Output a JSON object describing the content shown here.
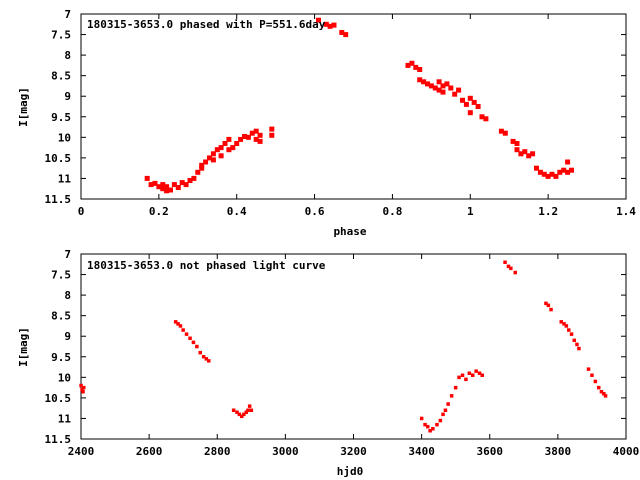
{
  "chart_data": [
    {
      "type": "scatter",
      "title": "180315-3653.0 phased with P=551.6day",
      "xlabel": "phase",
      "ylabel": "I[mag]",
      "xlim": [
        0,
        1.4
      ],
      "ylim": [
        11.5,
        7
      ],
      "y_inverted": true,
      "grid": false,
      "marker_color": "#ff0000",
      "x_ticks": [
        "0",
        "0.2",
        "0.4",
        "0.6",
        "0.8",
        "1",
        "1.2",
        "1.4"
      ],
      "y_ticks": [
        "7",
        "7.5",
        "8",
        "8.5",
        "9",
        "9.5",
        "10",
        "10.5",
        "11",
        "11.5"
      ],
      "series": [
        {
          "points": [
            [
              0.17,
              11.0
            ],
            [
              0.18,
              11.15
            ],
            [
              0.19,
              11.12
            ],
            [
              0.2,
              11.2
            ],
            [
              0.21,
              11.25
            ],
            [
              0.21,
              11.15
            ],
            [
              0.22,
              11.3
            ],
            [
              0.22,
              11.2
            ],
            [
              0.23,
              11.28
            ],
            [
              0.24,
              11.15
            ],
            [
              0.25,
              11.22
            ],
            [
              0.26,
              11.1
            ],
            [
              0.27,
              11.15
            ],
            [
              0.28,
              11.05
            ],
            [
              0.29,
              11.0
            ],
            [
              0.3,
              10.85
            ],
            [
              0.31,
              10.75
            ],
            [
              0.31,
              10.68
            ],
            [
              0.32,
              10.6
            ],
            [
              0.33,
              10.5
            ],
            [
              0.34,
              10.55
            ],
            [
              0.34,
              10.4
            ],
            [
              0.35,
              10.3
            ],
            [
              0.36,
              10.45
            ],
            [
              0.36,
              10.25
            ],
            [
              0.37,
              10.15
            ],
            [
              0.38,
              10.3
            ],
            [
              0.38,
              10.05
            ],
            [
              0.39,
              10.25
            ],
            [
              0.4,
              10.15
            ],
            [
              0.41,
              10.05
            ],
            [
              0.42,
              9.98
            ],
            [
              0.43,
              10.0
            ],
            [
              0.44,
              9.9
            ],
            [
              0.45,
              10.05
            ],
            [
              0.45,
              9.85
            ],
            [
              0.46,
              10.1
            ],
            [
              0.46,
              9.95
            ],
            [
              0.49,
              9.95
            ],
            [
              0.49,
              9.8
            ],
            [
              0.61,
              7.15
            ],
            [
              0.63,
              7.25
            ],
            [
              0.64,
              7.3
            ],
            [
              0.65,
              7.27
            ],
            [
              0.67,
              7.45
            ],
            [
              0.68,
              7.5
            ],
            [
              0.84,
              8.25
            ],
            [
              0.85,
              8.2
            ],
            [
              0.86,
              8.3
            ],
            [
              0.87,
              8.35
            ],
            [
              0.87,
              8.6
            ],
            [
              0.88,
              8.65
            ],
            [
              0.89,
              8.7
            ],
            [
              0.9,
              8.75
            ],
            [
              0.91,
              8.8
            ],
            [
              0.92,
              8.65
            ],
            [
              0.92,
              8.85
            ],
            [
              0.93,
              8.75
            ],
            [
              0.93,
              8.9
            ],
            [
              0.94,
              8.7
            ],
            [
              0.95,
              8.8
            ],
            [
              0.96,
              8.95
            ],
            [
              0.97,
              8.85
            ],
            [
              0.98,
              9.1
            ],
            [
              0.99,
              9.2
            ],
            [
              1.0,
              9.05
            ],
            [
              1.0,
              9.4
            ],
            [
              1.01,
              9.15
            ],
            [
              1.02,
              9.25
            ],
            [
              1.03,
              9.5
            ],
            [
              1.04,
              9.55
            ],
            [
              1.08,
              9.85
            ],
            [
              1.09,
              9.9
            ],
            [
              1.11,
              10.1
            ],
            [
              1.12,
              10.15
            ],
            [
              1.12,
              10.3
            ],
            [
              1.13,
              10.4
            ],
            [
              1.14,
              10.35
            ],
            [
              1.15,
              10.45
            ],
            [
              1.16,
              10.4
            ],
            [
              1.17,
              10.75
            ],
            [
              1.18,
              10.85
            ],
            [
              1.19,
              10.9
            ],
            [
              1.2,
              10.95
            ],
            [
              1.21,
              10.9
            ],
            [
              1.22,
              10.95
            ],
            [
              1.23,
              10.85
            ],
            [
              1.24,
              10.8
            ],
            [
              1.25,
              10.85
            ],
            [
              1.25,
              10.6
            ],
            [
              1.26,
              10.8
            ]
          ]
        }
      ]
    },
    {
      "type": "scatter",
      "title": "180315-3653.0 not phased light curve",
      "xlabel": "hjd0",
      "ylabel": "I[mag]",
      "xlim": [
        2400,
        4000
      ],
      "ylim": [
        11.5,
        7
      ],
      "y_inverted": true,
      "grid": false,
      "marker_color": "#ff0000",
      "x_ticks": [
        "2400",
        "2600",
        "2800",
        "3000",
        "3200",
        "3400",
        "3600",
        "3800",
        "4000"
      ],
      "y_ticks": [
        "7",
        "7.5",
        "8",
        "8.5",
        "9",
        "9.5",
        "10",
        "10.5",
        "11",
        "11.5"
      ],
      "series": [
        {
          "points": [
            [
              2400,
              10.2
            ],
            [
              2403,
              10.3
            ],
            [
              2406,
              10.35
            ],
            [
              2408,
              10.25
            ],
            [
              2678,
              8.65
            ],
            [
              2685,
              8.7
            ],
            [
              2692,
              8.75
            ],
            [
              2700,
              8.85
            ],
            [
              2710,
              8.95
            ],
            [
              2720,
              9.05
            ],
            [
              2730,
              9.15
            ],
            [
              2740,
              9.25
            ],
            [
              2750,
              9.4
            ],
            [
              2760,
              9.5
            ],
            [
              2768,
              9.55
            ],
            [
              2775,
              9.6
            ],
            [
              2848,
              10.8
            ],
            [
              2858,
              10.85
            ],
            [
              2865,
              10.9
            ],
            [
              2872,
              10.95
            ],
            [
              2878,
              10.9
            ],
            [
              2885,
              10.85
            ],
            [
              2890,
              10.8
            ],
            [
              2895,
              10.7
            ],
            [
              2900,
              10.8
            ],
            [
              3400,
              11.0
            ],
            [
              3410,
              11.15
            ],
            [
              3418,
              11.2
            ],
            [
              3425,
              11.3
            ],
            [
              3433,
              11.25
            ],
            [
              3445,
              11.15
            ],
            [
              3455,
              11.05
            ],
            [
              3463,
              10.9
            ],
            [
              3470,
              10.8
            ],
            [
              3478,
              10.65
            ],
            [
              3488,
              10.45
            ],
            [
              3500,
              10.25
            ],
            [
              3510,
              10.0
            ],
            [
              3520,
              9.95
            ],
            [
              3530,
              10.05
            ],
            [
              3540,
              9.9
            ],
            [
              3550,
              9.95
            ],
            [
              3560,
              9.85
            ],
            [
              3570,
              9.9
            ],
            [
              3578,
              9.95
            ],
            [
              3645,
              7.2
            ],
            [
              3655,
              7.3
            ],
            [
              3662,
              7.35
            ],
            [
              3675,
              7.45
            ],
            [
              3765,
              8.2
            ],
            [
              3772,
              8.25
            ],
            [
              3780,
              8.35
            ],
            [
              3810,
              8.65
            ],
            [
              3818,
              8.7
            ],
            [
              3825,
              8.75
            ],
            [
              3832,
              8.85
            ],
            [
              3840,
              8.95
            ],
            [
              3848,
              9.1
            ],
            [
              3856,
              9.2
            ],
            [
              3862,
              9.3
            ],
            [
              3890,
              9.8
            ],
            [
              3900,
              9.95
            ],
            [
              3910,
              10.1
            ],
            [
              3920,
              10.25
            ],
            [
              3928,
              10.35
            ],
            [
              3935,
              10.4
            ],
            [
              3940,
              10.45
            ]
          ]
        }
      ]
    }
  ]
}
